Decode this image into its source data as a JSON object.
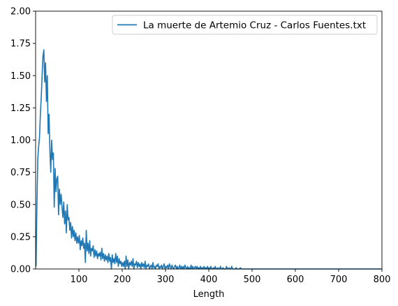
{
  "chart_data": {
    "type": "line",
    "title": "",
    "xlabel": "Length",
    "ylabel": "",
    "xlim": [
      0,
      800
    ],
    "ylim": [
      0,
      2.0
    ],
    "xticks": [
      100,
      200,
      300,
      400,
      500,
      600,
      700,
      800
    ],
    "xtick_labels": [
      "100",
      "200",
      "300",
      "400",
      "500",
      "600",
      "700",
      "800"
    ],
    "yticks": [
      0,
      0.25,
      0.5,
      0.75,
      1.0,
      1.25,
      1.5,
      1.75,
      2.0
    ],
    "ytick_labels": [
      "0.00",
      "0.25",
      "0.50",
      "0.75",
      "1.00",
      "1.25",
      "1.50",
      "1.75",
      "2.00"
    ],
    "grid": false,
    "legend_position": "top-right",
    "colors": {
      "series": "#1f77b4",
      "axes": "#000000",
      "background": "#ffffff"
    },
    "series": [
      {
        "name": "La muerte de Artemio Cruz - Carlos Fuentes.txt",
        "x_start": 1,
        "x_step": 2,
        "values": [
          0.02,
          0.5,
          0.85,
          0.95,
          1.02,
          1.2,
          1.33,
          1.5,
          1.65,
          1.7,
          1.45,
          1.6,
          1.3,
          1.5,
          1.05,
          1.2,
          0.92,
          0.75,
          1.0,
          0.85,
          0.9,
          0.48,
          0.78,
          0.6,
          0.7,
          0.72,
          0.42,
          0.62,
          0.5,
          0.58,
          0.48,
          0.4,
          0.52,
          0.35,
          0.45,
          0.28,
          0.5,
          0.38,
          0.4,
          0.3,
          0.36,
          0.24,
          0.33,
          0.25,
          0.3,
          0.22,
          0.28,
          0.2,
          0.25,
          0.2,
          0.26,
          0.15,
          0.22,
          0.18,
          0.24,
          0.16,
          0.2,
          0.05,
          0.3,
          0.14,
          0.2,
          0.12,
          0.22,
          0.1,
          0.16,
          0.14,
          0.18,
          0.09,
          0.15,
          0.1,
          0.14,
          0.08,
          0.12,
          0.1,
          0.13,
          0.07,
          0.16,
          0.08,
          0.12,
          0.06,
          0.11,
          0.07,
          0.1,
          0.05,
          0.12,
          0.06,
          0.09,
          0.0,
          0.11,
          0.05,
          0.08,
          0.04,
          0.12,
          0.05,
          0.1,
          0.02,
          0.08,
          0.04,
          0.06,
          0.02,
          0.05,
          0.02,
          0.06,
          0.0,
          0.1,
          0.02,
          0.07,
          0.0,
          0.05,
          0.03,
          0.06,
          0.02,
          0.08,
          0.0,
          0.04,
          0.03,
          0.06,
          0.01,
          0.05,
          0.02,
          0.04,
          0.0,
          0.05,
          0.02,
          0.04,
          0.01,
          0.06,
          0.0,
          0.03,
          0.02,
          0.04,
          0.0,
          0.02,
          0.03,
          0.0,
          0.05,
          0.01,
          0.02,
          0.0,
          0.03,
          0.02,
          0.04,
          0.0,
          0.02,
          0.01,
          0.03,
          0.0,
          0.02,
          0.04,
          0.0,
          0.02,
          0.01,
          0.03,
          0.0,
          0.04,
          0.02,
          0.0,
          0.03,
          0.01,
          0.0,
          0.02,
          0.03,
          0.0,
          0.02,
          0.0,
          0.01,
          0.03,
          0.0,
          0.02,
          0.0,
          0.02,
          0.0,
          0.03,
          0.01,
          0.0,
          0.02,
          0.0,
          0.01,
          0.0,
          0.03,
          0.0,
          0.02,
          0.0,
          0.01,
          0.02,
          0.0,
          0.02,
          0.0,
          0.01,
          0.0,
          0.02,
          0.0,
          0.01,
          0.0,
          0.02,
          0.0,
          0.01,
          0.0,
          0.02,
          0.0,
          0.01,
          0.0,
          0.02,
          0.0,
          0.0,
          0.01,
          0.0,
          0.02,
          0.0,
          0.0,
          0.01,
          0.0,
          0.0,
          0.02,
          0.0,
          0.0,
          0.01,
          0.0,
          0.0,
          0.0,
          0.02,
          0.0,
          0.0,
          0.01,
          0.0,
          0.0,
          0.02,
          0.0,
          0.0,
          0.0,
          0.0,
          0.01,
          0.0,
          0.0,
          0.0,
          0.0,
          0.01,
          0.0,
          0.0,
          0.0,
          0.0,
          0.0,
          0.0,
          0.0,
          0.0,
          0.0,
          0.0,
          0.0,
          0.0,
          0.0,
          0.0,
          0.0,
          0.0,
          0.0,
          0.0,
          0.0,
          0.0,
          0.0,
          0.0,
          0.0,
          0.0,
          0.0,
          0.0,
          0.0,
          0.0,
          0.0,
          0.0,
          0.0,
          0.0,
          0.0,
          0.0,
          0.0,
          0.0,
          0.0,
          0.0,
          0.0,
          0.0,
          0.0,
          0.0,
          0.0,
          0.0,
          0.0,
          0.0,
          0.0,
          0.0,
          0.0,
          0.0,
          0.0,
          0.0,
          0.0,
          0.0,
          0.0,
          0.0,
          0.0,
          0.0,
          0.0,
          0.0,
          0.0,
          0.0,
          0.0,
          0.0,
          0.0,
          0.0,
          0.0,
          0.0,
          0.0,
          0.0,
          0.0,
          0.0,
          0.0,
          0.0,
          0.0,
          0.0,
          0.0,
          0.0,
          0.0,
          0.0,
          0.0,
          0.0,
          0.0,
          0.0,
          0.0,
          0.0,
          0.0,
          0.0,
          0.0,
          0.0,
          0.0,
          0.0,
          0.0,
          0.0,
          0.0,
          0.0,
          0.0,
          0.0,
          0.0,
          0.0,
          0.0,
          0.0,
          0.0,
          0.0,
          0.0,
          0.0,
          0.0,
          0.0,
          0.0,
          0.0,
          0.0,
          0.0,
          0.0,
          0.0,
          0.0,
          0.0,
          0.0,
          0.0,
          0.0,
          0.0,
          0.0,
          0.0,
          0.0,
          0.0,
          0.0,
          0.0,
          0.0,
          0.0,
          0.0,
          0.0,
          0.0,
          0.0,
          0.0,
          0.0,
          0.0,
          0.0,
          0.0,
          0.0,
          0.0,
          0.0,
          0.0,
          0.0,
          0.0,
          0.0,
          0.0,
          0.0,
          0.0,
          0.0,
          0.0,
          0.0,
          0.0,
          0.0,
          0.0,
          0.0,
          0.0,
          0.0,
          0.0,
          0.0,
          0.0,
          0.0,
          0.0,
          0.0,
          0.0
        ]
      }
    ]
  }
}
